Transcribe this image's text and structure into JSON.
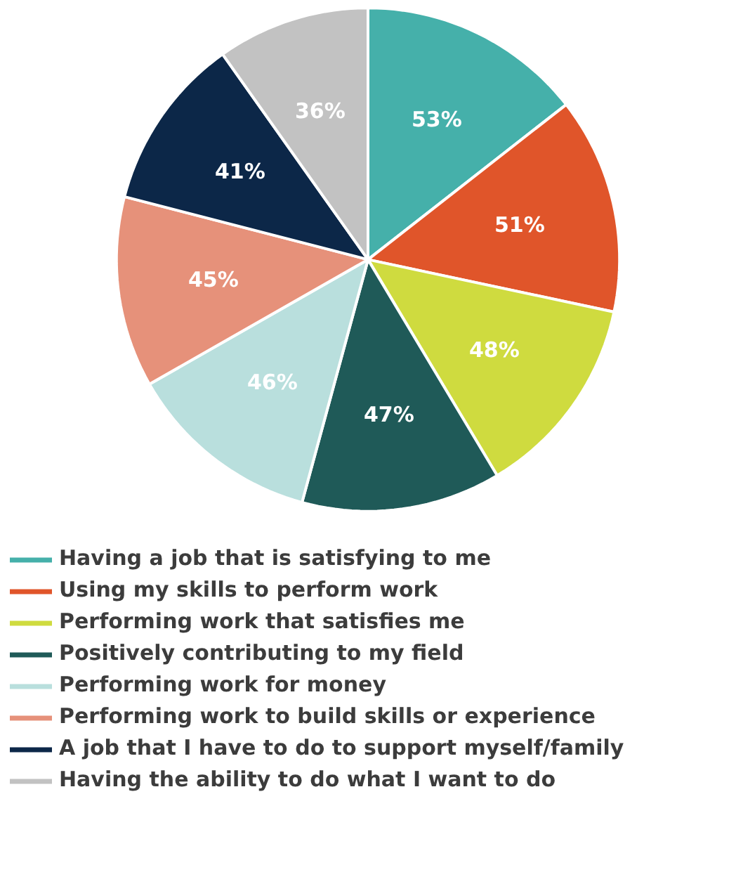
{
  "chart_data": {
    "type": "pie",
    "categories": [
      "Having a job that is satisfying to me",
      "Using my skills to perform work",
      "Performing work that satisfies me",
      "Positively contributing to my field",
      "Performing work for money",
      "Performing work to build skills or experience",
      "A job that I have to do to support myself/family",
      "Having the ability to do what I want to do"
    ],
    "values": [
      53,
      51,
      48,
      47,
      46,
      45,
      41,
      36
    ],
    "value_labels": [
      "53%",
      "51%",
      "48%",
      "47%",
      "46%",
      "45%",
      "41%",
      "36%"
    ],
    "colors": [
      "#45b0aa",
      "#e0552a",
      "#cfdb3f",
      "#1f5a58",
      "#b9dfdd",
      "#e6917a",
      "#0c2748",
      "#c2c2c2"
    ],
    "legend": "bottom"
  }
}
